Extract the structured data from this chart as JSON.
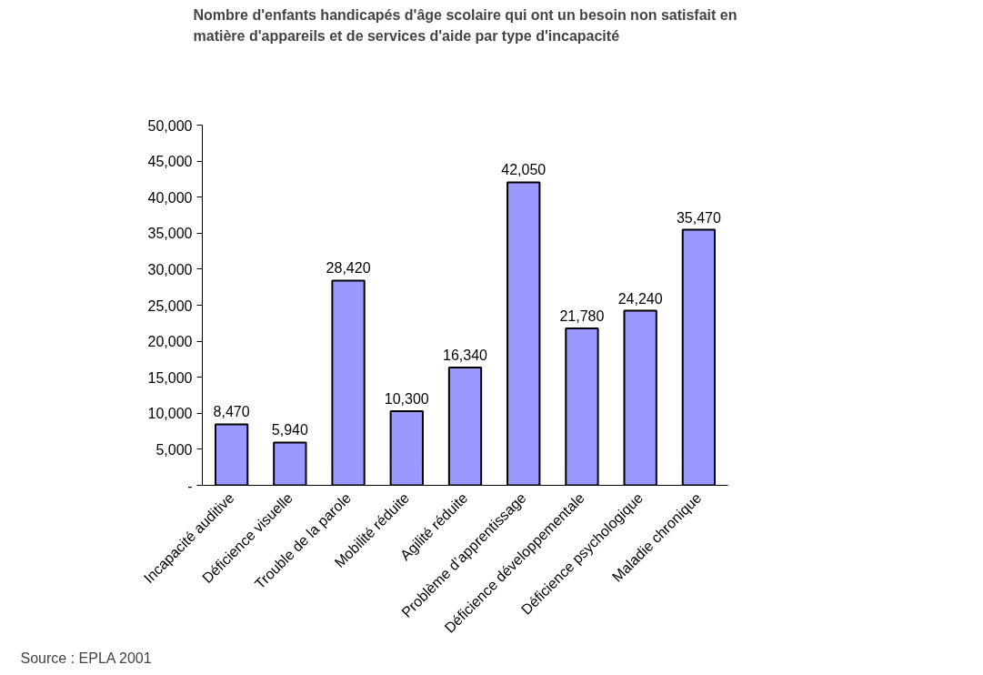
{
  "chart_data": {
    "type": "bar",
    "title": "Nombre d'enfants handicapés d'âge scolaire qui ont un besoin non satisfait en\nmatière d'appareils et de services d'aide par type d'incapacité",
    "categories": [
      "Incapacité auditive",
      "Déficience visuelle",
      "Trouble de la parole",
      "Mobilité réduite",
      "Agilité réduite",
      "Problème d’apprentissage",
      "Déficience développementale",
      "Déficience psychologique",
      "Maladie chronique"
    ],
    "values": [
      8470,
      5940,
      28420,
      10300,
      16340,
      42050,
      21780,
      24240,
      35470
    ],
    "value_labels": [
      "8,470",
      "5,940",
      "28,420",
      "10,300",
      "16,340",
      "42,050",
      "21,780",
      "24,240",
      "35,470"
    ],
    "color": "#9999ff",
    "ylim": [
      0,
      50000
    ],
    "yticks": [
      {
        "value": 0,
        "label": "-"
      },
      {
        "value": 5000,
        "label": "5,000"
      },
      {
        "value": 10000,
        "label": "10,000"
      },
      {
        "value": 15000,
        "label": "15,000"
      },
      {
        "value": 20000,
        "label": "20,000"
      },
      {
        "value": 25000,
        "label": "25,000"
      },
      {
        "value": 30000,
        "label": "30,000"
      },
      {
        "value": 35000,
        "label": "35,000"
      },
      {
        "value": 40000,
        "label": "40,000"
      },
      {
        "value": 45000,
        "label": "45,000"
      },
      {
        "value": 50000,
        "label": "50,000"
      }
    ],
    "grid": false,
    "annotations": [
      "Source : EPLA 2001"
    ]
  }
}
